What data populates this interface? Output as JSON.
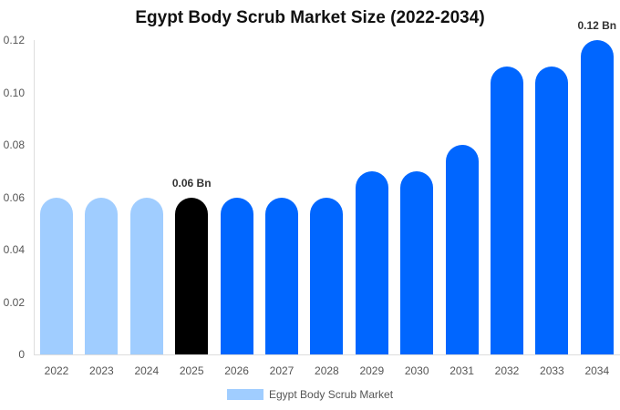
{
  "chart_data": {
    "type": "bar",
    "title": "Egypt Body Scrub Market Size (2022-2034)",
    "xlabel": "",
    "ylabel": "",
    "categories": [
      "2022",
      "2023",
      "2024",
      "2025",
      "2026",
      "2027",
      "2028",
      "2029",
      "2030",
      "2031",
      "2032",
      "2033",
      "2034"
    ],
    "series": [
      {
        "name": "Egypt Body Scrub Market",
        "values": [
          0.06,
          0.06,
          0.06,
          0.06,
          0.06,
          0.06,
          0.06,
          0.07,
          0.07,
          0.08,
          0.11,
          0.11,
          0.12
        ]
      }
    ],
    "ylim": [
      0,
      0.12
    ],
    "yticks": [
      "0",
      "0.02",
      "0.04",
      "0.06",
      "0.08",
      "0.10",
      "0.12"
    ],
    "annotations": [
      {
        "category": "2025",
        "text": "0.06 Bn"
      },
      {
        "category": "2034",
        "text": "0.12 Bn"
      }
    ],
    "bar_colors": [
      "#a0cdff",
      "#a0cdff",
      "#a0cdff",
      "#000000",
      "#0066ff",
      "#0066ff",
      "#0066ff",
      "#0066ff",
      "#0066ff",
      "#0066ff",
      "#0066ff",
      "#0066ff",
      "#0066ff"
    ],
    "legend_position": "bottom",
    "grid": false
  },
  "legend": {
    "label": "Egypt Body Scrub Market",
    "color": "#a0cdff"
  }
}
